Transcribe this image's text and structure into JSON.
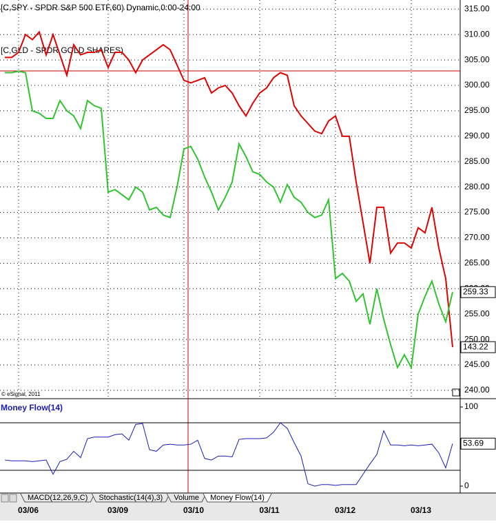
{
  "chart_data": [
    {
      "type": "line",
      "categories": [
        null,
        null,
        "03/06",
        null,
        null,
        null,
        null,
        null,
        null,
        null,
        null,
        null,
        null,
        null,
        null,
        "03/09",
        null,
        null,
        null,
        null,
        null,
        null,
        null,
        null,
        null,
        null,
        "03/10",
        null,
        null,
        null,
        null,
        null,
        null,
        null,
        null,
        null,
        null,
        "03/11",
        null,
        null,
        null,
        null,
        null,
        null,
        null,
        null,
        null,
        null,
        "03/12",
        null,
        null,
        null,
        null,
        null,
        null,
        null,
        null,
        null,
        null,
        "03/13",
        null,
        null,
        null,
        null,
        null,
        null
      ],
      "series": [
        {
          "name": "[C,SPY - SPDR S&P 500 ETF,60) Dynamic,0:00-24:00",
          "color": "#e00000",
          "tag": "143.22",
          "values": [
            305.5,
            305.5,
            306.5,
            310,
            309,
            310.5,
            306,
            310,
            306,
            302,
            308,
            306,
            306.5,
            306.5,
            307,
            303.5,
            306.5,
            306.5,
            305,
            302.5,
            305,
            306,
            307,
            308,
            307,
            304,
            301,
            300.5,
            301,
            301.5,
            298.5,
            299.5,
            300,
            298.5,
            296,
            294,
            296.5,
            298.5,
            299.5,
            301.5,
            302.5,
            302,
            296,
            294,
            292.5,
            291,
            290.5,
            293,
            294,
            290,
            290,
            281,
            273,
            265,
            276,
            276,
            267,
            269,
            269,
            268,
            272,
            271,
            276,
            268,
            262,
            248.5
          ]
        },
        {
          "name": "[C,GLD - SPDR GOLD SHARES)",
          "color": "#2fc42f",
          "tag": "259.33",
          "values": [
            302.5,
            302.5,
            302.8,
            302.5,
            295,
            294.5,
            293.5,
            293.5,
            297,
            295,
            294,
            291.5,
            297,
            296,
            295.5,
            279,
            279.5,
            278.5,
            277.5,
            280,
            279,
            275.5,
            276,
            274.5,
            274,
            280,
            287.5,
            288,
            285.5,
            282,
            279,
            275.5,
            278,
            281,
            288.5,
            286,
            283,
            282.5,
            281,
            280,
            277,
            280.5,
            278,
            277,
            275,
            274,
            274.5,
            277.5,
            262,
            263,
            261.5,
            257.5,
            259,
            253,
            260,
            254,
            249,
            244.5,
            247,
            244.5,
            255,
            258.5,
            261.5,
            257,
            253.5,
            259.33
          ]
        }
      ],
      "ylim": [
        238.5,
        316.8
      ],
      "yticks": [
        {
          "value": 240,
          "label": "240.00"
        },
        {
          "value": 245,
          "label": "245.00"
        },
        {
          "value": 250,
          "label": "250.00"
        },
        {
          "value": 255,
          "label": "255.00"
        },
        {
          "value": 260,
          "label": "260.00"
        },
        {
          "value": 265,
          "label": "265.00"
        },
        {
          "value": 270,
          "label": "270.00"
        },
        {
          "value": 275,
          "label": "275.00"
        },
        {
          "value": 280,
          "label": "280.00"
        },
        {
          "value": 285,
          "label": "285.00"
        },
        {
          "value": 290,
          "label": "290.00"
        },
        {
          "value": 295,
          "label": "295.00"
        },
        {
          "value": 300,
          "label": "300.00"
        },
        {
          "value": 305,
          "label": "305.00"
        },
        {
          "value": 310,
          "label": "310.00"
        },
        {
          "value": 315,
          "label": "315.00"
        }
      ],
      "grid": true,
      "watermark": "© eSignal, 2011"
    },
    {
      "type": "line",
      "title": "Money Flow(14)",
      "series": [
        {
          "name": "Money Flow(14)",
          "color": "#1a1ab8",
          "tag": "53.69",
          "values": [
            33,
            32,
            32,
            32,
            31,
            32,
            33,
            15,
            31,
            34,
            44,
            36,
            60,
            62,
            62,
            62,
            65,
            66,
            58,
            78,
            79,
            46,
            44,
            52,
            53,
            52,
            52,
            53,
            58,
            35,
            33,
            38,
            38,
            37,
            59,
            60,
            60,
            60,
            61,
            68,
            80,
            73,
            55,
            38,
            3,
            0,
            2,
            2,
            1,
            2,
            2,
            2,
            15,
            28,
            40,
            70,
            52,
            52,
            51,
            52,
            51,
            52,
            53,
            42,
            23,
            53.69
          ]
        }
      ],
      "ylim": [
        -8.7,
        107
      ],
      "yticks": [
        0,
        100
      ],
      "levels": [
        20,
        80
      ]
    }
  ],
  "tabs": [
    "MACD(12,26,9,C)",
    "Stochastic(14(4),3)",
    "Volume",
    "Money Flow(14)"
  ]
}
